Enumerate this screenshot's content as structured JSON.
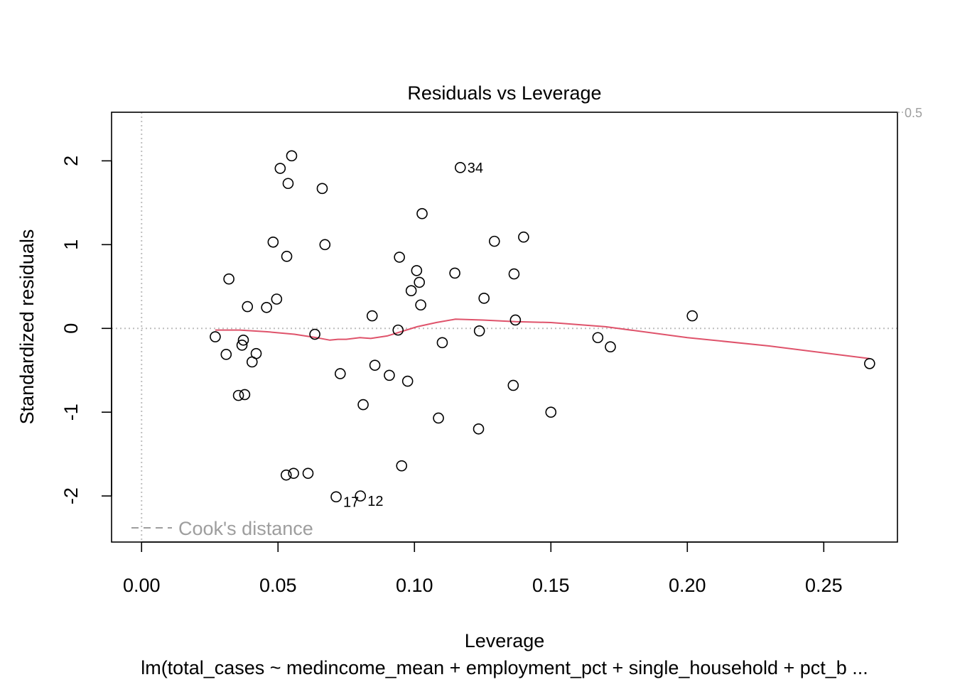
{
  "chart_data": {
    "type": "scatter",
    "title": "Residuals vs Leverage",
    "xlabel": "Leverage",
    "ylabel": "Standardized residuals",
    "caption": "lm(total_cases ~ medincome_mean + employment_pct + single_household + pct_b ...",
    "xlim": [
      -0.011,
      0.277
    ],
    "ylim": [
      -2.55,
      2.58
    ],
    "x_ticks": [
      0.0,
      0.05,
      0.1,
      0.15,
      0.2,
      0.25
    ],
    "x_tick_labels": [
      "0.00",
      "0.05",
      "0.10",
      "0.15",
      "0.20",
      "0.25"
    ],
    "y_ticks": [
      -2,
      -1,
      0,
      1,
      2
    ],
    "y_tick_labels": [
      "-2",
      "-1",
      "0",
      "1",
      "2"
    ],
    "grid": false,
    "colors": {
      "points": "#000000",
      "smooth": "#DF536B",
      "reference_lines": "#BEBEBE",
      "cooks": "#9E9E9E"
    },
    "cooks_contour_labels": [
      {
        "text": "0.5",
        "y": 2.58
      }
    ],
    "legend": {
      "position": "bottom-left",
      "entries": [
        {
          "label": "Cook's distance",
          "line_style": "dashed",
          "color": "#9E9E9E"
        }
      ]
    },
    "points": [
      {
        "x": 0.027,
        "y": -0.1
      },
      {
        "x": 0.031,
        "y": -0.31
      },
      {
        "x": 0.032,
        "y": 0.59
      },
      {
        "x": 0.0355,
        "y": -0.8
      },
      {
        "x": 0.0368,
        "y": -0.2
      },
      {
        "x": 0.0373,
        "y": -0.14
      },
      {
        "x": 0.0378,
        "y": -0.79
      },
      {
        "x": 0.0388,
        "y": 0.26
      },
      {
        "x": 0.0405,
        "y": -0.4
      },
      {
        "x": 0.042,
        "y": -0.3
      },
      {
        "x": 0.0458,
        "y": 0.25
      },
      {
        "x": 0.0482,
        "y": 1.03
      },
      {
        "x": 0.0495,
        "y": 0.35
      },
      {
        "x": 0.0508,
        "y": 1.91
      },
      {
        "x": 0.053,
        "y": -1.75
      },
      {
        "x": 0.0532,
        "y": 0.86
      },
      {
        "x": 0.0537,
        "y": 1.73
      },
      {
        "x": 0.055,
        "y": 2.06
      },
      {
        "x": 0.0557,
        "y": -1.73
      },
      {
        "x": 0.061,
        "y": -1.73
      },
      {
        "x": 0.0635,
        "y": -0.07
      },
      {
        "x": 0.0662,
        "y": 1.67
      },
      {
        "x": 0.0672,
        "y": 1.0
      },
      {
        "x": 0.0713,
        "y": -2.01,
        "label": "17"
      },
      {
        "x": 0.0728,
        "y": -0.54
      },
      {
        "x": 0.0802,
        "y": -2.0,
        "label": "12"
      },
      {
        "x": 0.0812,
        "y": -0.91
      },
      {
        "x": 0.0845,
        "y": 0.15
      },
      {
        "x": 0.0855,
        "y": -0.44
      },
      {
        "x": 0.0908,
        "y": -0.56
      },
      {
        "x": 0.094,
        "y": -0.02
      },
      {
        "x": 0.0945,
        "y": 0.85
      },
      {
        "x": 0.0953,
        "y": -1.64
      },
      {
        "x": 0.0975,
        "y": -0.63
      },
      {
        "x": 0.0988,
        "y": 0.45
      },
      {
        "x": 0.1008,
        "y": 0.69
      },
      {
        "x": 0.1018,
        "y": 0.55
      },
      {
        "x": 0.1023,
        "y": 0.28
      },
      {
        "x": 0.1028,
        "y": 1.37
      },
      {
        "x": 0.1088,
        "y": -1.07
      },
      {
        "x": 0.1102,
        "y": -0.17
      },
      {
        "x": 0.1148,
        "y": 0.66
      },
      {
        "x": 0.1168,
        "y": 1.92,
        "label": "34"
      },
      {
        "x": 0.1235,
        "y": -1.2
      },
      {
        "x": 0.1238,
        "y": -0.03
      },
      {
        "x": 0.1255,
        "y": 0.36
      },
      {
        "x": 0.1293,
        "y": 1.04
      },
      {
        "x": 0.1362,
        "y": -0.68
      },
      {
        "x": 0.1365,
        "y": 0.65
      },
      {
        "x": 0.137,
        "y": 0.1
      },
      {
        "x": 0.14,
        "y": 1.09
      },
      {
        "x": 0.15,
        "y": -1.0
      },
      {
        "x": 0.1672,
        "y": -0.11
      },
      {
        "x": 0.1718,
        "y": -0.22
      },
      {
        "x": 0.2018,
        "y": 0.15
      },
      {
        "x": 0.2668,
        "y": -0.42
      }
    ],
    "smooth_line": [
      {
        "x": 0.027,
        "y": -0.02
      },
      {
        "x": 0.036,
        "y": -0.02
      },
      {
        "x": 0.046,
        "y": -0.04
      },
      {
        "x": 0.056,
        "y": -0.07
      },
      {
        "x": 0.064,
        "y": -0.11
      },
      {
        "x": 0.069,
        "y": -0.14
      },
      {
        "x": 0.072,
        "y": -0.13
      },
      {
        "x": 0.075,
        "y": -0.13
      },
      {
        "x": 0.08,
        "y": -0.11
      },
      {
        "x": 0.084,
        "y": -0.12
      },
      {
        "x": 0.09,
        "y": -0.09
      },
      {
        "x": 0.095,
        "y": -0.04
      },
      {
        "x": 0.101,
        "y": 0.02
      },
      {
        "x": 0.108,
        "y": 0.07
      },
      {
        "x": 0.115,
        "y": 0.11
      },
      {
        "x": 0.125,
        "y": 0.1
      },
      {
        "x": 0.137,
        "y": 0.08
      },
      {
        "x": 0.15,
        "y": 0.07
      },
      {
        "x": 0.17,
        "y": 0.02
      },
      {
        "x": 0.2,
        "y": -0.11
      },
      {
        "x": 0.23,
        "y": -0.21
      },
      {
        "x": 0.2668,
        "y": -0.36
      }
    ]
  }
}
